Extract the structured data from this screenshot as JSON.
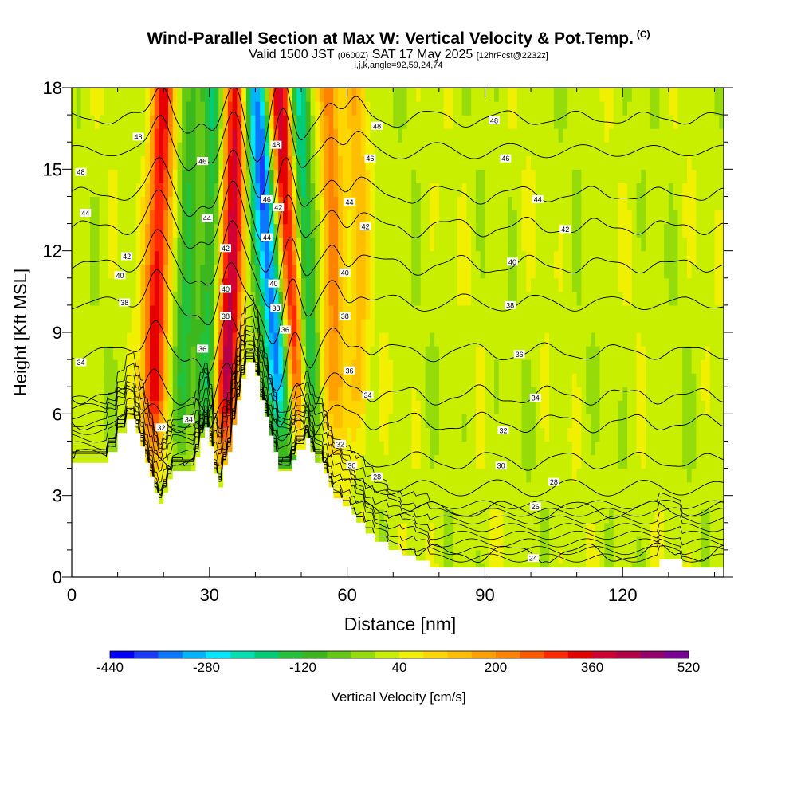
{
  "header": {
    "title": "Wind-Parallel Section at Max W: Vertical Velocity & Pot.Temp.",
    "copyright": "(C)",
    "valid_prefix": "Valid 1500 JST",
    "valid_utc": "(0600Z)",
    "valid_date": "SAT 17 May 2025",
    "forecast": "[12hrFcst@2232z]",
    "params": "i,j,k,angle=92,59,24,74"
  },
  "chart_data": {
    "type": "heatmap",
    "xlabel": "Distance [nm]",
    "ylabel": "Height [Kft MSL]",
    "xlim": [
      0,
      142
    ],
    "ylim": [
      0,
      18
    ],
    "x_ticks": [
      0,
      30,
      60,
      90,
      120
    ],
    "y_ticks": [
      0,
      3,
      6,
      9,
      12,
      15,
      18
    ],
    "colorbar": {
      "label": "Vertical Velocity [cm/s]",
      "tick_labels": [
        -440,
        -280,
        -120,
        40,
        200,
        360,
        520
      ],
      "levels": [
        -440,
        -400,
        -360,
        -320,
        -280,
        -240,
        -200,
        -160,
        -120,
        -80,
        -40,
        0,
        40,
        80,
        120,
        160,
        200,
        240,
        280,
        320,
        360,
        400,
        440,
        480,
        520
      ],
      "colors": [
        "#0000ff",
        "#1a3cff",
        "#0a78ff",
        "#00b4ff",
        "#00e6ff",
        "#00e0b0",
        "#00cc78",
        "#22c23a",
        "#3cb81e",
        "#64c814",
        "#96dc0a",
        "#c8ee00",
        "#f0f000",
        "#ffd700",
        "#ffbf00",
        "#ffa000",
        "#ff8200",
        "#ff5a00",
        "#ff2800",
        "#e60000",
        "#d20032",
        "#b40046",
        "#96006e",
        "#7a0096"
      ]
    },
    "terrain_kft": [
      [
        0,
        4.2
      ],
      [
        8,
        4.2
      ],
      [
        8,
        4.6
      ],
      [
        10,
        4.6
      ],
      [
        10,
        5.3
      ],
      [
        12,
        5.3
      ],
      [
        12,
        5.8
      ],
      [
        14,
        5.8
      ],
      [
        14,
        5.3
      ],
      [
        15,
        5.3
      ],
      [
        15,
        4.8
      ],
      [
        16,
        4.8
      ],
      [
        16,
        4.2
      ],
      [
        17,
        4.2
      ],
      [
        17,
        3.7
      ],
      [
        18,
        3.7
      ],
      [
        18,
        3.1
      ],
      [
        19,
        3.1
      ],
      [
        19,
        2.7
      ],
      [
        20,
        2.7
      ],
      [
        20,
        3.1
      ],
      [
        21,
        3.1
      ],
      [
        21,
        3.6
      ],
      [
        22,
        3.6
      ],
      [
        22,
        3.9
      ],
      [
        27,
        3.9
      ],
      [
        27,
        4.4
      ],
      [
        28,
        4.4
      ],
      [
        28,
        5.1
      ],
      [
        29,
        5.1
      ],
      [
        29,
        5.5
      ],
      [
        30,
        5.5
      ],
      [
        30,
        4.8
      ],
      [
        31,
        4.8
      ],
      [
        31,
        3.8
      ],
      [
        32,
        3.8
      ],
      [
        32,
        3.3
      ],
      [
        33,
        3.3
      ],
      [
        33,
        4.1
      ],
      [
        34,
        4.1
      ],
      [
        34,
        4.6
      ],
      [
        35,
        4.6
      ],
      [
        35,
        5.6
      ],
      [
        36,
        5.6
      ],
      [
        36,
        6.5
      ],
      [
        37,
        6.5
      ],
      [
        37,
        7.3
      ],
      [
        38,
        7.3
      ],
      [
        38,
        7.9
      ],
      [
        40,
        7.9
      ],
      [
        40,
        7.4
      ],
      [
        41,
        7.4
      ],
      [
        41,
        6.5
      ],
      [
        42,
        6.5
      ],
      [
        42,
        5.9
      ],
      [
        43,
        5.9
      ],
      [
        43,
        5.2
      ],
      [
        44,
        5.2
      ],
      [
        44,
        4.6
      ],
      [
        45,
        4.6
      ],
      [
        45,
        3.9
      ],
      [
        48,
        3.9
      ],
      [
        48,
        4.3
      ],
      [
        49,
        4.3
      ],
      [
        49,
        4.7
      ],
      [
        51,
        4.7
      ],
      [
        51,
        5.1
      ],
      [
        52,
        5.1
      ],
      [
        52,
        4.6
      ],
      [
        53,
        4.6
      ],
      [
        53,
        4.2
      ],
      [
        55,
        4.2
      ],
      [
        55,
        3.8
      ],
      [
        56,
        3.8
      ],
      [
        56,
        3.3
      ],
      [
        57,
        3.3
      ],
      [
        57,
        2.9
      ],
      [
        59,
        2.9
      ],
      [
        59,
        2.6
      ],
      [
        61,
        2.6
      ],
      [
        61,
        2.3
      ],
      [
        62,
        2.3
      ],
      [
        62,
        2.0
      ],
      [
        64,
        2.0
      ],
      [
        64,
        1.6
      ],
      [
        66,
        1.6
      ],
      [
        66,
        1.3
      ],
      [
        69,
        1.3
      ],
      [
        69,
        1.0
      ],
      [
        72,
        1.0
      ],
      [
        72,
        0.8
      ],
      [
        75,
        0.8
      ],
      [
        75,
        0.6
      ],
      [
        78,
        0.6
      ],
      [
        78,
        0.35
      ],
      [
        80,
        0.35
      ],
      [
        80,
        0.35
      ],
      [
        128,
        0.35
      ],
      [
        128,
        0.65
      ],
      [
        133,
        0.65
      ],
      [
        133,
        0.35
      ],
      [
        142,
        0.35
      ]
    ],
    "updraft_bands": [
      {
        "x_bottom": 17,
        "x_top": 20,
        "w": 330,
        "width_nm": 2.6
      },
      {
        "x_bottom": 33,
        "x_top": 36,
        "w": 380,
        "width_nm": 2.6
      },
      {
        "x_bottom": 50,
        "x_top": 45,
        "w": 400,
        "width_nm": 2.8
      },
      {
        "x_bottom": 58,
        "x_top": 56,
        "w": 200,
        "width_nm": 2.4
      },
      {
        "x_bottom": 63,
        "x_top": 62,
        "w": 120,
        "width_nm": 2.2
      }
    ],
    "downdraft_bands": [
      {
        "x_bottom": 24,
        "x_top": 26,
        "w": -140,
        "width_nm": 2.4
      },
      {
        "x_bottom": 29,
        "x_top": 31,
        "w": -180,
        "width_nm": 2.2
      },
      {
        "x_bottom": 48,
        "x_top": 40,
        "w": -420,
        "width_nm": 3.0
      },
      {
        "x_bottom": 53,
        "x_top": 49,
        "w": -250,
        "width_nm": 2.2
      }
    ],
    "background_w": 20,
    "theta_contours": [
      {
        "theta": 24,
        "height_kft": 0.8
      },
      {
        "theta": 26,
        "height_kft": 2.4
      },
      {
        "theta": 28,
        "height_kft": 3.2
      },
      {
        "theta": 30,
        "height_kft": 4.2
      },
      {
        "theta": 32,
        "height_kft": 5.6
      },
      {
        "theta": 34,
        "height_kft": 6.6
      },
      {
        "theta": 36,
        "height_kft": 8.2
      },
      {
        "theta": 38,
        "height_kft": 10.0
      },
      {
        "theta": 40,
        "height_kft": 11.4
      },
      {
        "theta": 42,
        "height_kft": 12.8
      },
      {
        "theta": 44,
        "height_kft": 14.0
      },
      {
        "theta": 46,
        "height_kft": 15.6
      },
      {
        "theta": 48,
        "height_kft": 16.8
      }
    ],
    "contour_labels": [
      {
        "text": "48",
        "x": 14.5,
        "y": 16.2
      },
      {
        "text": "48",
        "x": 2,
        "y": 14.9
      },
      {
        "text": "44",
        "x": 3,
        "y": 13.4
      },
      {
        "text": "42",
        "x": 12,
        "y": 11.8
      },
      {
        "text": "40",
        "x": 10.5,
        "y": 11.1
      },
      {
        "text": "38",
        "x": 11.5,
        "y": 10.1
      },
      {
        "text": "34",
        "x": 2,
        "y": 7.9
      },
      {
        "text": "46",
        "x": 28.5,
        "y": 15.3
      },
      {
        "text": "44",
        "x": 29.5,
        "y": 13.2
      },
      {
        "text": "42",
        "x": 33.5,
        "y": 12.1
      },
      {
        "text": "40",
        "x": 33.5,
        "y": 10.6
      },
      {
        "text": "38",
        "x": 33.5,
        "y": 9.6
      },
      {
        "text": "36",
        "x": 28.5,
        "y": 8.4
      },
      {
        "text": "46",
        "x": 42.5,
        "y": 13.9
      },
      {
        "text": "44",
        "x": 42.5,
        "y": 12.5
      },
      {
        "text": "48",
        "x": 44.5,
        "y": 15.9
      },
      {
        "text": "42",
        "x": 45,
        "y": 13.6
      },
      {
        "text": "40",
        "x": 44,
        "y": 10.8
      },
      {
        "text": "38",
        "x": 44.5,
        "y": 9.9
      },
      {
        "text": "36",
        "x": 46.5,
        "y": 9.1
      },
      {
        "text": "34",
        "x": 25.5,
        "y": 5.8
      },
      {
        "text": "32",
        "x": 19.5,
        "y": 5.5
      },
      {
        "text": "48",
        "x": 66.5,
        "y": 16.6
      },
      {
        "text": "46",
        "x": 65,
        "y": 15.4
      },
      {
        "text": "44",
        "x": 60.5,
        "y": 13.8
      },
      {
        "text": "42",
        "x": 64,
        "y": 12.9
      },
      {
        "text": "40",
        "x": 59.5,
        "y": 11.2
      },
      {
        "text": "38",
        "x": 59.5,
        "y": 9.6
      },
      {
        "text": "36",
        "x": 60.5,
        "y": 7.6
      },
      {
        "text": "34",
        "x": 64.5,
        "y": 6.7
      },
      {
        "text": "32",
        "x": 58.5,
        "y": 4.9
      },
      {
        "text": "30",
        "x": 61,
        "y": 4.1
      },
      {
        "text": "28",
        "x": 66.5,
        "y": 3.7
      },
      {
        "text": "48",
        "x": 92,
        "y": 16.8
      },
      {
        "text": "46",
        "x": 94.5,
        "y": 15.4
      },
      {
        "text": "44",
        "x": 101.5,
        "y": 13.9
      },
      {
        "text": "42",
        "x": 107.5,
        "y": 12.8
      },
      {
        "text": "40",
        "x": 96,
        "y": 11.6
      },
      {
        "text": "38",
        "x": 95.5,
        "y": 10.0
      },
      {
        "text": "36",
        "x": 97.5,
        "y": 8.2
      },
      {
        "text": "34",
        "x": 101,
        "y": 6.6
      },
      {
        "text": "32",
        "x": 94,
        "y": 5.4
      },
      {
        "text": "30",
        "x": 93.5,
        "y": 4.1
      },
      {
        "text": "28",
        "x": 105,
        "y": 3.5
      },
      {
        "text": "26",
        "x": 101,
        "y": 2.6
      },
      {
        "text": "24",
        "x": 100.5,
        "y": 0.7
      }
    ]
  }
}
